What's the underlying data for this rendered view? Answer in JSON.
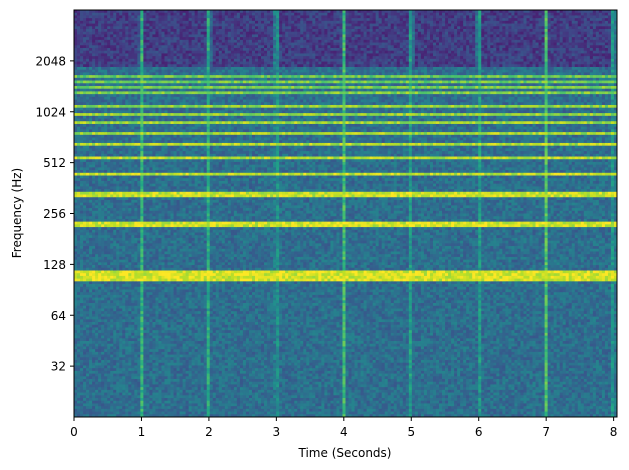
{
  "chart_data": {
    "type": "heatmap",
    "title": "",
    "xlabel": "Time (Seconds)",
    "ylabel": "Frequency (Hz)",
    "xlim": [
      0,
      8.05
    ],
    "ylim": [
      16,
      4096
    ],
    "y_scale": "log2",
    "x_ticks": [
      {
        "value": 0,
        "label": "0"
      },
      {
        "value": 1,
        "label": "1"
      },
      {
        "value": 2,
        "label": "2"
      },
      {
        "value": 3,
        "label": "3"
      },
      {
        "value": 4,
        "label": "4"
      },
      {
        "value": 5,
        "label": "5"
      },
      {
        "value": 6,
        "label": "6"
      },
      {
        "value": 7,
        "label": "7"
      },
      {
        "value": 8,
        "label": "8"
      }
    ],
    "y_ticks": [
      {
        "value": 32,
        "label": "32"
      },
      {
        "value": 64,
        "label": "64"
      },
      {
        "value": 128,
        "label": "128"
      },
      {
        "value": 256,
        "label": "256"
      },
      {
        "value": 512,
        "label": "512"
      },
      {
        "value": 1024,
        "label": "1024"
      },
      {
        "value": 2048,
        "label": "2048"
      }
    ],
    "colormap": "viridis",
    "note_onsets_seconds": [
      1,
      2,
      3,
      4,
      5,
      6,
      7,
      8
    ],
    "segments": [
      {
        "t0": 0,
        "t1": 1,
        "fundamental_hz": 110
      },
      {
        "t0": 1,
        "t1": 2,
        "fundamental_hz": 110
      },
      {
        "t0": 2,
        "t1": 3,
        "fundamental_hz": 110
      },
      {
        "t0": 3,
        "t1": 4,
        "fundamental_hz": 110
      },
      {
        "t0": 4,
        "t1": 5,
        "fundamental_hz": 110
      },
      {
        "t0": 5,
        "t1": 6,
        "fundamental_hz": 110
      },
      {
        "t0": 6,
        "t1": 7,
        "fundamental_hz": 110
      },
      {
        "t0": 7,
        "t1": 8.05,
        "fundamental_hz": 110
      }
    ],
    "harmonic_rolloff_hz": 1900,
    "grid": false
  }
}
